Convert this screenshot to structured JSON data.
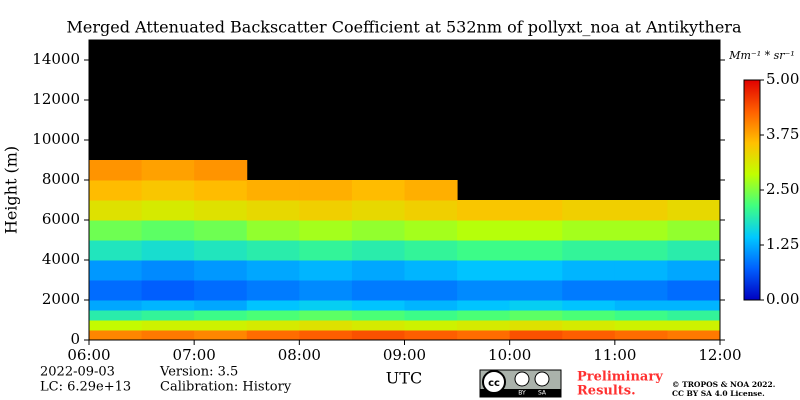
{
  "chart_data": {
    "type": "heatmap",
    "title": "Merged Attenuated Backscatter Coefficient at 532nm of pollyxt_noa at Antikythera",
    "y_label": "Height (m)",
    "x_label": "UTC",
    "x_bins": [
      6,
      6.5,
      7,
      7.5,
      8,
      8.5,
      9,
      9.5,
      10,
      10.5,
      11,
      11.5,
      12
    ],
    "y_bins": [
      0,
      500,
      1000,
      1500,
      2000,
      3000,
      4000,
      5000,
      6000,
      7000,
      8000,
      9000,
      15000
    ],
    "values": [
      [
        4.0,
        4.1,
        4.0,
        4.2,
        4.3,
        4.4,
        4.3,
        4.2,
        4.4,
        4.3,
        4.2,
        4.1
      ],
      [
        2.9,
        3.0,
        3.0,
        3.1,
        3.2,
        3.1,
        3.0,
        3.1,
        3.2,
        3.1,
        3.0,
        3.0
      ],
      [
        1.9,
        2.0,
        2.1,
        2.2,
        2.3,
        2.2,
        2.1,
        2.2,
        2.3,
        2.2,
        2.1,
        2.0
      ],
      [
        1.2,
        1.3,
        1.2,
        1.4,
        1.5,
        1.4,
        1.3,
        1.4,
        1.5,
        1.4,
        1.3,
        1.3
      ],
      [
        0.8,
        0.7,
        0.8,
        0.9,
        1.0,
        0.9,
        0.9,
        1.0,
        1.0,
        0.9,
        0.9,
        0.8
      ],
      [
        1.1,
        1.0,
        1.1,
        1.2,
        1.3,
        1.2,
        1.3,
        1.4,
        1.4,
        1.3,
        1.3,
        1.2
      ],
      [
        1.8,
        1.7,
        1.8,
        1.9,
        2.0,
        1.9,
        2.0,
        2.1,
        2.1,
        2.0,
        2.0,
        1.9
      ],
      [
        2.4,
        2.3,
        2.4,
        2.6,
        2.7,
        2.6,
        2.7,
        2.8,
        2.8,
        2.7,
        2.7,
        2.6
      ],
      [
        3.2,
        3.1,
        3.2,
        3.3,
        3.4,
        3.3,
        3.4,
        3.5,
        3.5,
        3.4,
        3.4,
        3.3
      ],
      [
        3.6,
        3.5,
        3.6,
        3.7,
        3.7,
        3.6,
        3.7,
        null,
        null,
        null,
        null,
        null
      ],
      [
        3.9,
        3.8,
        3.9,
        null,
        null,
        null,
        null,
        null,
        null,
        null,
        null,
        null
      ],
      [
        null,
        null,
        null,
        null,
        null,
        null,
        null,
        null,
        null,
        null,
        null,
        null
      ]
    ],
    "xlim": [
      6,
      12
    ],
    "ylim": [
      0,
      15000
    ],
    "xticks": [
      {
        "value": 6,
        "label": "06:00"
      },
      {
        "value": 7,
        "label": "07:00"
      },
      {
        "value": 8,
        "label": "08:00"
      },
      {
        "value": 9,
        "label": "09:00"
      },
      {
        "value": 10,
        "label": "10:00"
      },
      {
        "value": 11,
        "label": "11:00"
      },
      {
        "value": 12,
        "label": "12:00"
      }
    ],
    "yticks": [
      0,
      2000,
      4000,
      6000,
      8000,
      10000,
      12000,
      14000
    ],
    "colorbar_label": "Mm⁻¹ * sr⁻¹",
    "clim": [
      0,
      5
    ],
    "cticks": [
      {
        "value": 0,
        "label": "0.00"
      },
      {
        "value": 1.25,
        "label": "1.25"
      },
      {
        "value": 2.5,
        "label": "2.50"
      },
      {
        "value": 3.75,
        "label": "3.75"
      },
      {
        "value": 5,
        "label": "5.00"
      }
    ],
    "colormap": [
      "#0000c0",
      "#0060ff",
      "#00c8ff",
      "#40ff80",
      "#c0ff00",
      "#ffc000",
      "#ff6000",
      "#e00000"
    ],
    "date": "2022-09-03",
    "lc": "LC: 6.29e+13",
    "version": "Version: 3.5",
    "calibration": "Calibration: History",
    "preliminary": [
      "Preliminary",
      "Results."
    ],
    "badge": [
      "BY",
      "SA"
    ],
    "copyright": [
      "© TROPOS & NOA 2022.",
      "CC BY SA 4.0 License."
    ]
  }
}
